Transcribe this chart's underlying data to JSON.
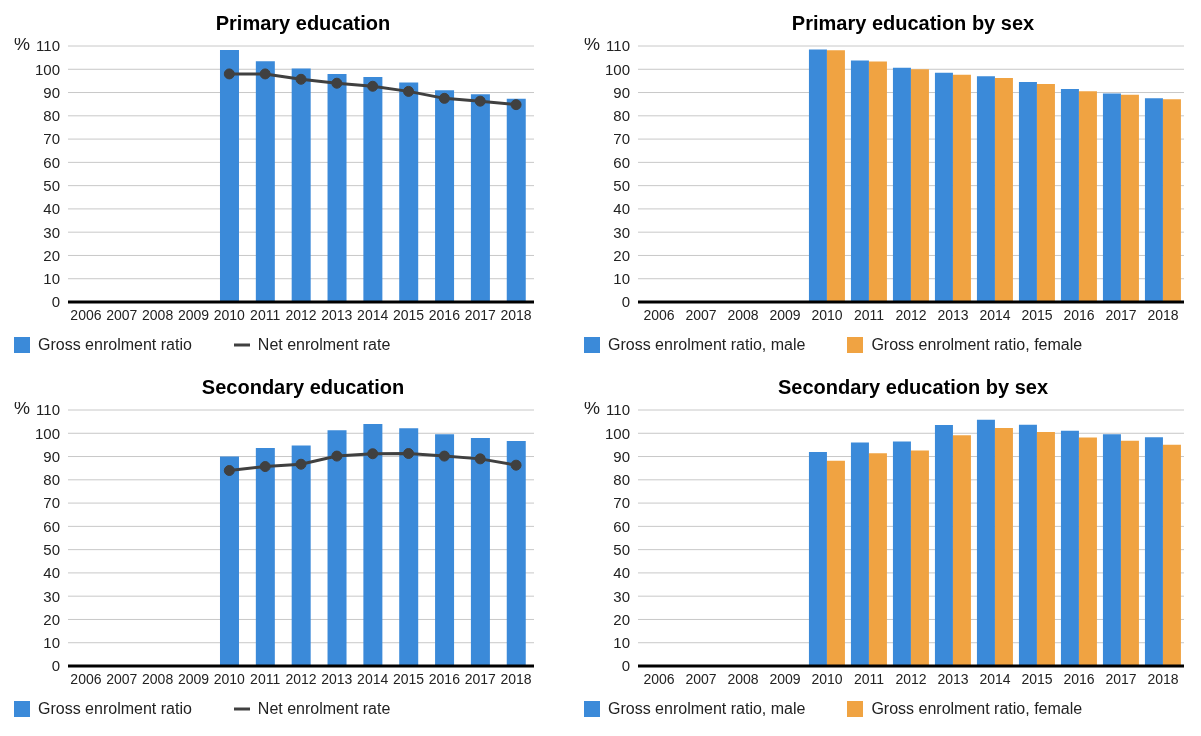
{
  "chart_data": [
    {
      "type": "bar",
      "title": "Primary education",
      "ylabel": "%",
      "categories": [
        "2006",
        "2007",
        "2008",
        "2009",
        "2010",
        "2011",
        "2012",
        "2013",
        "2014",
        "2015",
        "2016",
        "2017",
        "2018"
      ],
      "ylim": [
        0,
        110
      ],
      "yticks": [
        0,
        10,
        20,
        30,
        40,
        50,
        60,
        70,
        80,
        90,
        100,
        110
      ],
      "grid": "y",
      "legend": "bottom left",
      "marker": "circle",
      "line_style": "solid",
      "series": [
        {
          "name": "Gross enrolment ratio",
          "color": "#3b8ad9",
          "values": [
            null,
            null,
            null,
            null,
            108.3,
            103.5,
            100.3,
            98,
            96.7,
            94.3,
            91,
            89.3,
            87.3
          ]
        },
        {
          "name": "Net enrolment rate",
          "type": "line",
          "color": "#404040",
          "values": [
            null,
            null,
            null,
            null,
            98,
            98,
            95.7,
            94,
            92.7,
            90.5,
            87.5,
            86.3,
            84.8
          ]
        }
      ]
    },
    {
      "type": "bar",
      "title": "Primary education by sex",
      "ylabel": "%",
      "categories": [
        "2006",
        "2007",
        "2008",
        "2009",
        "2010",
        "2011",
        "2012",
        "2013",
        "2014",
        "2015",
        "2016",
        "2017",
        "2018"
      ],
      "ylim": [
        0,
        110
      ],
      "yticks": [
        0,
        10,
        20,
        30,
        40,
        50,
        60,
        70,
        80,
        90,
        100,
        110
      ],
      "grid": "y",
      "legend": "bottom left",
      "series": [
        {
          "name": "Gross enrolment ratio, male",
          "color": "#3b8ad9",
          "values": [
            null,
            null,
            null,
            null,
            108.5,
            103.8,
            100.7,
            98.5,
            97,
            94.5,
            91.5,
            89.6,
            87.6
          ]
        },
        {
          "name": "Gross enrolment ratio, female",
          "color": "#f0a342",
          "values": [
            null,
            null,
            null,
            null,
            108.2,
            103.3,
            100,
            97.7,
            96.2,
            93.7,
            90.6,
            89,
            87.1
          ]
        }
      ]
    },
    {
      "type": "bar",
      "title": "Secondary education",
      "ylabel": "%",
      "categories": [
        "2006",
        "2007",
        "2008",
        "2009",
        "2010",
        "2011",
        "2012",
        "2013",
        "2014",
        "2015",
        "2016",
        "2017",
        "2018"
      ],
      "ylim": [
        0,
        110
      ],
      "yticks": [
        0,
        10,
        20,
        30,
        40,
        50,
        60,
        70,
        80,
        90,
        100,
        110
      ],
      "grid": "y",
      "legend": "bottom left",
      "marker": "circle",
      "line_style": "solid",
      "series": [
        {
          "name": "Gross enrolment ratio",
          "color": "#3b8ad9",
          "values": [
            null,
            null,
            null,
            null,
            90,
            93.7,
            94.7,
            101.3,
            104,
            102.2,
            99.6,
            98,
            96.7
          ]
        },
        {
          "name": "Net enrolment rate",
          "type": "line",
          "color": "#404040",
          "values": [
            null,
            null,
            null,
            null,
            84,
            85.7,
            86.7,
            90.2,
            91.2,
            91.3,
            90.2,
            89,
            86.3
          ]
        }
      ]
    },
    {
      "type": "bar",
      "title": "Secondary education by sex",
      "ylabel": "%",
      "categories": [
        "2006",
        "2007",
        "2008",
        "2009",
        "2010",
        "2011",
        "2012",
        "2013",
        "2014",
        "2015",
        "2016",
        "2017",
        "2018"
      ],
      "ylim": [
        0,
        110
      ],
      "yticks": [
        0,
        10,
        20,
        30,
        40,
        50,
        60,
        70,
        80,
        90,
        100,
        110
      ],
      "grid": "y",
      "legend": "bottom left",
      "series": [
        {
          "name": "Gross enrolment ratio, male",
          "color": "#3b8ad9",
          "values": [
            null,
            null,
            null,
            null,
            92,
            96,
            96.5,
            103.6,
            105.8,
            103.7,
            101.1,
            99.6,
            98.3
          ]
        },
        {
          "name": "Gross enrolment ratio, female",
          "color": "#f0a342",
          "values": [
            null,
            null,
            null,
            null,
            88.2,
            91.4,
            92.6,
            99.1,
            102.3,
            100.6,
            98.2,
            96.8,
            95.1
          ]
        }
      ]
    }
  ]
}
